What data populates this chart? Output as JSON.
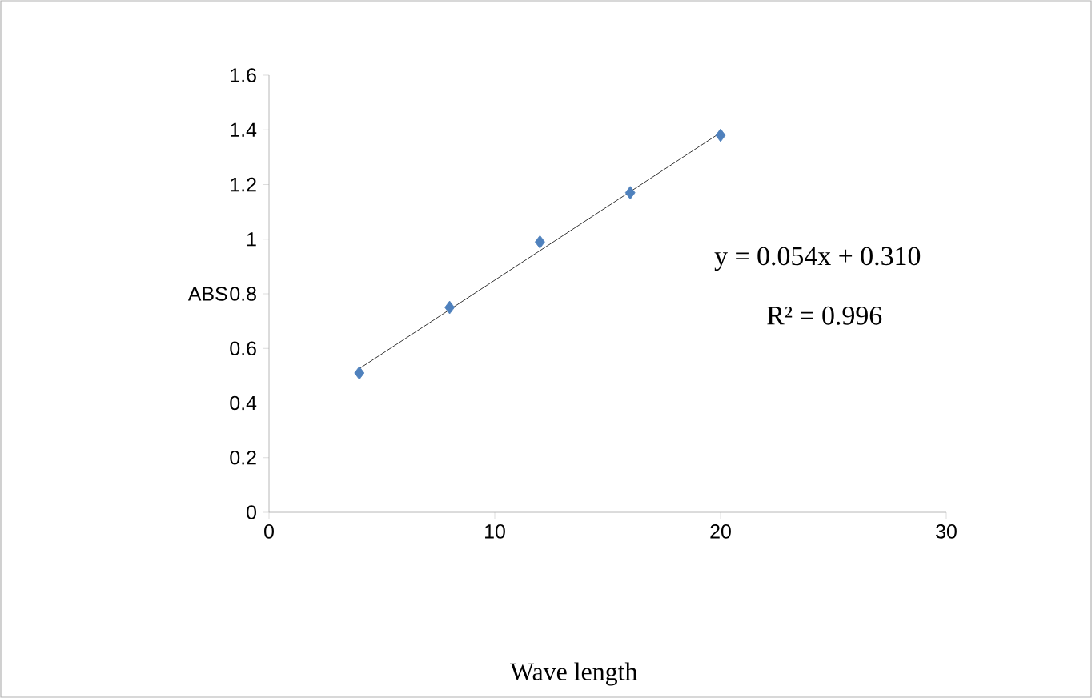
{
  "chart_data": {
    "type": "scatter",
    "xlabel": "Wave length",
    "ylabel": "ABS",
    "series": [
      {
        "color": "#4f81bd",
        "marker": "diamond",
        "x": [
          4,
          8,
          12,
          16,
          20
        ],
        "values": [
          0.51,
          0.75,
          0.99,
          1.17,
          1.38
        ]
      },
      {
        "type": "line",
        "color": "#000000",
        "marker": "none",
        "x": [
          4,
          20
        ],
        "values": [
          0.526,
          1.39
        ]
      }
    ],
    "xlim": [
      0,
      30
    ],
    "xticks": [
      0,
      10,
      20,
      30
    ],
    "ylim": [
      0,
      1.6
    ],
    "yticks": [
      0,
      {
        "value": 0.2,
        "label": "0.2"
      },
      {
        "value": 0.4,
        "label": "0.4"
      },
      {
        "value": 0.6,
        "label": "0.6"
      },
      {
        "value": 0.8,
        "label": "0.8"
      },
      1,
      {
        "value": 1.2,
        "label": "1.2"
      },
      {
        "value": 1.4,
        "label": "1.4"
      },
      {
        "value": 1.6,
        "label": "1.6"
      }
    ],
    "grid": false,
    "annotations": [
      "y = 0.054x + 0.310",
      "R² = 0.996"
    ]
  }
}
